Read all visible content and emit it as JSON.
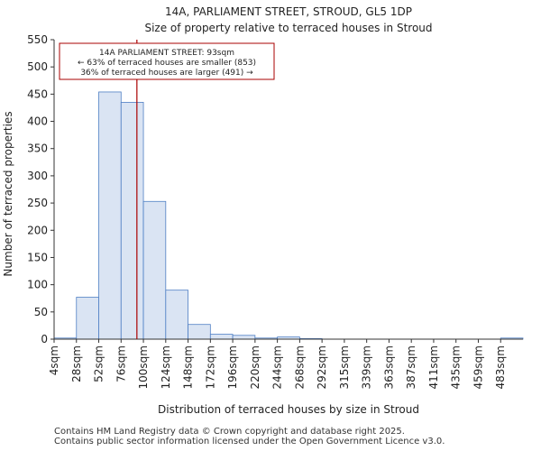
{
  "chart_data": {
    "type": "bar",
    "title_line1": "14A, PARLIAMENT STREET, STROUD, GL5 1DP",
    "title_line2": "Size of property relative to terraced houses in Stroud",
    "xlabel": "Distribution of terraced houses by size in Stroud",
    "ylabel": "Number of terraced properties",
    "ylim": [
      0,
      550
    ],
    "yticks": [
      0,
      50,
      100,
      150,
      200,
      250,
      300,
      350,
      400,
      450,
      500,
      550
    ],
    "bin_edges": [
      4,
      28,
      52,
      76,
      100,
      124,
      148,
      172,
      196,
      220,
      244,
      268,
      292,
      315,
      339,
      363,
      387,
      411,
      435,
      459,
      483
    ],
    "categories": [
      "4sqm",
      "28sqm",
      "52sqm",
      "76sqm",
      "100sqm",
      "124sqm",
      "148sqm",
      "172sqm",
      "196sqm",
      "220sqm",
      "244sqm",
      "268sqm",
      "292sqm",
      "315sqm",
      "339sqm",
      "363sqm",
      "387sqm",
      "411sqm",
      "435sqm",
      "459sqm",
      "483sqm"
    ],
    "values": [
      2,
      77,
      454,
      435,
      253,
      90,
      27,
      9,
      7,
      2,
      4,
      1,
      0,
      0,
      0,
      0,
      0,
      0,
      0,
      0,
      2
    ],
    "bar_color": "#dae4f3",
    "bar_edge_color": "#4f7fc4",
    "marker": {
      "value": 93,
      "color": "#aa0000",
      "annotation_line1": "14A PARLIAMENT STREET: 93sqm",
      "annotation_line2": "← 63% of terraced houses are smaller (853)",
      "annotation_line3": "36% of terraced houses are larger (491) →"
    }
  },
  "footer": {
    "line1": "Contains HM Land Registry data © Crown copyright and database right 2025.",
    "line2": "Contains public sector information licensed under the Open Government Licence v3.0."
  }
}
